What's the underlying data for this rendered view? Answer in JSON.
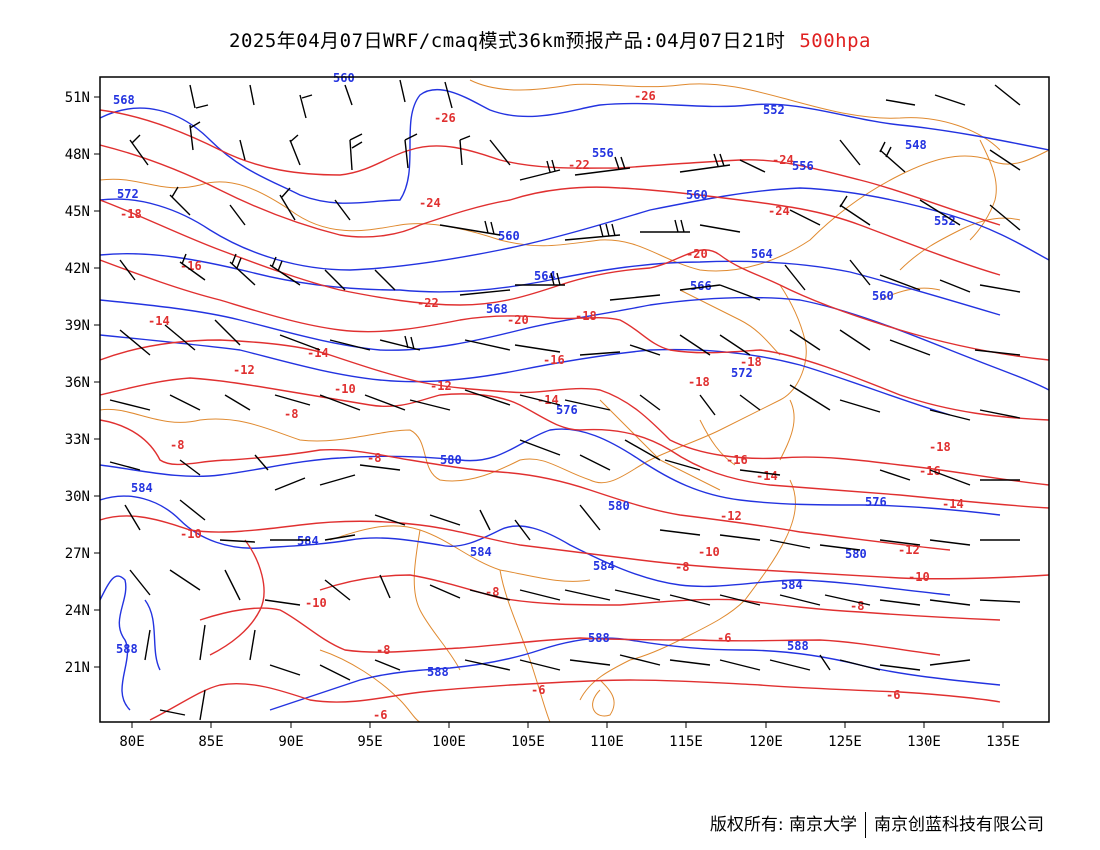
{
  "title": {
    "main": "2025年04月07日WRF/cmaq模式36km预报产品:04月07日21时",
    "level": "500hpa"
  },
  "axes": {
    "lon_labels": [
      "80E",
      "85E",
      "90E",
      "95E",
      "100E",
      "105E",
      "110E",
      "115E",
      "120E",
      "125E",
      "130E",
      "135E"
    ],
    "lat_labels": [
      "51N",
      "48N",
      "45N",
      "42N",
      "39N",
      "36N",
      "33N",
      "30N",
      "27N",
      "24N",
      "21N"
    ]
  },
  "colors": {
    "height_contour": "#2333e0",
    "temperature_contour": "#e03030",
    "boundaries": "#e08a30",
    "wind_barb": "#000000"
  },
  "height_labels": [
    "568",
    "572",
    "584",
    "588",
    "560",
    "564",
    "566",
    "568",
    "552",
    "556",
    "548",
    "580",
    "576",
    "584",
    "588"
  ],
  "temperature_labels": [
    "-18",
    "-16",
    "-14",
    "-12",
    "-10",
    "-8",
    "-26",
    "-24",
    "-22",
    "-20",
    "-6"
  ],
  "footer": {
    "left": "版权所有: 南京大学",
    "right": "南京创蓝科技有限公司"
  }
}
